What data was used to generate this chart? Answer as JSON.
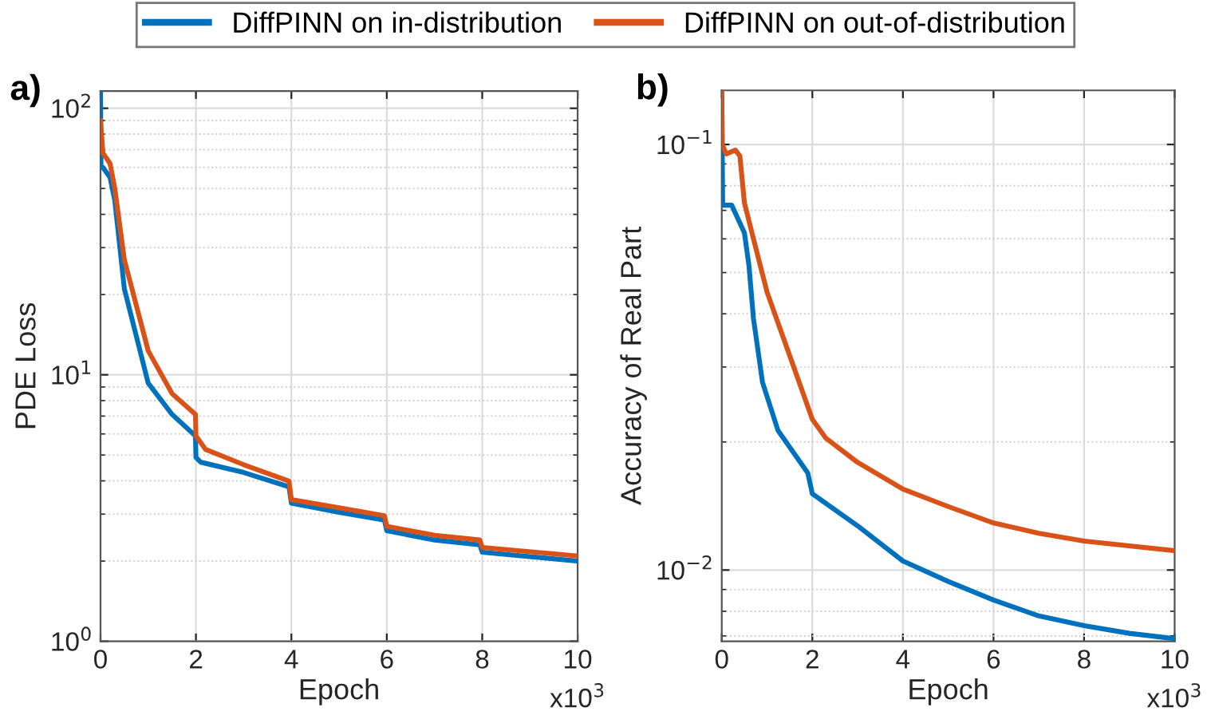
{
  "chart_data": [
    {
      "type": "line",
      "title": "a)",
      "xlabel": "Epoch",
      "ylabel": "PDE Loss",
      "annotations": [
        "x10$^{3}$"
      ],
      "log": "y",
      "grid": true,
      "legend": "top",
      "xlim": [
        0,
        10
      ],
      "xticks": [
        0,
        2,
        4,
        6,
        8,
        10
      ],
      "ylim": [
        1,
        116
      ],
      "yticks": [
        {
          "value": 1,
          "label": "10$^{0}$"
        },
        {
          "value": 10,
          "label": "10$^{1}$"
        },
        {
          "value": 100,
          "label": "10$^{2}$"
        }
      ],
      "series": [
        {
          "name": "DiffPINN on in-distribution",
          "color": "#0072bd",
          "x": [
            0,
            0.01,
            0.05,
            0.2,
            0.3,
            0.5,
            1.0,
            1.5,
            1.99,
            2.0,
            2.1,
            3.0,
            3.95,
            4.0,
            5.0,
            5.95,
            6.0,
            7.0,
            7.95,
            8.0,
            10.0
          ],
          "values": [
            116,
            60,
            60,
            55,
            45,
            21,
            9.3,
            7.1,
            5.9,
            4.9,
            4.7,
            4.3,
            3.8,
            3.3,
            3.05,
            2.85,
            2.6,
            2.4,
            2.3,
            2.16,
            2.0
          ]
        },
        {
          "name": "DiffPINN on out-of-distribution",
          "color": "#d95319",
          "x": [
            0,
            0.05,
            0.2,
            0.3,
            0.5,
            1.0,
            1.5,
            1.99,
            2.0,
            2.2,
            3.0,
            3.95,
            4.0,
            5.0,
            5.95,
            6.0,
            7.0,
            7.95,
            8.0,
            10.0
          ],
          "values": [
            90,
            68,
            62,
            50,
            27,
            12.3,
            8.5,
            7.1,
            5.9,
            5.25,
            4.6,
            3.99,
            3.4,
            3.17,
            2.96,
            2.7,
            2.5,
            2.4,
            2.25,
            2.09
          ]
        }
      ]
    },
    {
      "type": "line",
      "title": "b)",
      "xlabel": "Epoch",
      "ylabel": "Accuracy of Real Part",
      "annotations": [
        "x10$^{3}$"
      ],
      "log": "y",
      "grid": true,
      "xlim": [
        0,
        10
      ],
      "xticks": [
        0,
        2,
        4,
        6,
        8,
        10
      ],
      "ylim": [
        0.0068,
        0.134
      ],
      "yticks": [
        {
          "value": 0.01,
          "label": "10$^{−2}$"
        },
        {
          "value": 0.1,
          "label": "10$^{−1}$"
        }
      ],
      "series": [
        {
          "color": "#0072bd",
          "x": [
            0,
            0.01,
            0.02,
            0.22,
            0.5,
            0.6,
            0.7,
            0.9,
            1.24,
            1.9,
            2,
            3,
            4,
            5,
            6,
            7,
            8,
            9,
            10
          ],
          "values": [
            0.134,
            0.1,
            0.072,
            0.072,
            0.062,
            0.052,
            0.039,
            0.0276,
            0.0213,
            0.0169,
            0.0151,
            0.0127,
            0.0105,
            0.0094,
            0.0085,
            0.0078,
            0.0074,
            0.0071,
            0.0069
          ]
        },
        {
          "color": "#d95319",
          "x": [
            0,
            0.01,
            0.1,
            0.3,
            0.4,
            0.5,
            0.7,
            1.0,
            1.5,
            2.0,
            2.3,
            3,
            4,
            5,
            6,
            7,
            8,
            10
          ],
          "values": [
            0.134,
            0.1,
            0.095,
            0.097,
            0.094,
            0.073,
            0.06,
            0.045,
            0.0319,
            0.0226,
            0.0204,
            0.0179,
            0.0155,
            0.0141,
            0.0129,
            0.0122,
            0.0117,
            0.0111
          ]
        }
      ]
    }
  ]
}
